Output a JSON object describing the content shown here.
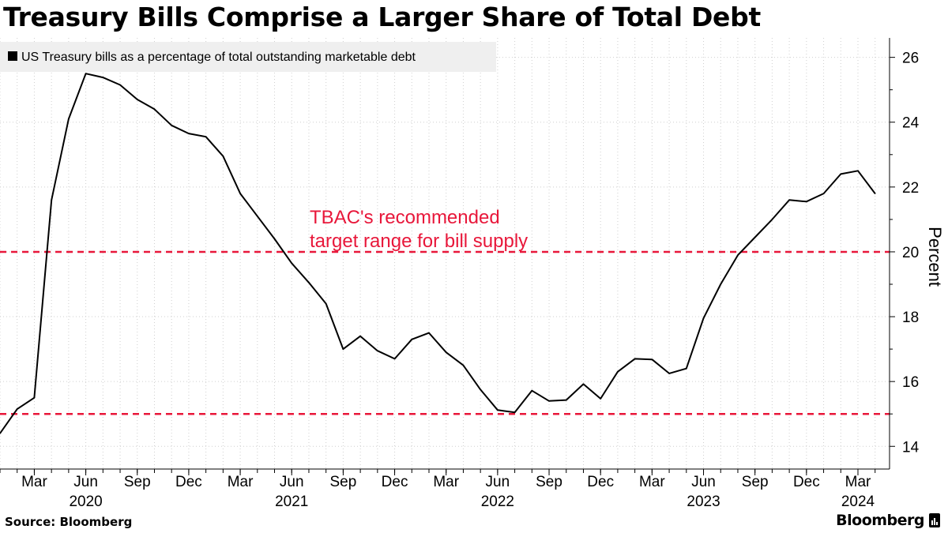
{
  "title": "Treasury Bills Comprise a Larger Share of Total Debt",
  "source": "Source: Bloomberg",
  "brand": "Bloomberg",
  "colors": {
    "line": "#000000",
    "threshold": "#e8173a",
    "grid": "#cfcfcf",
    "legend_bg": "#efefef"
  },
  "chart_data": {
    "type": "line",
    "title": "Treasury Bills Comprise a Larger Share of Total Debt",
    "xlabel": "",
    "ylabel": "Percent",
    "ylim": [
      13.3,
      26.6
    ],
    "yticks": [
      14,
      16,
      18,
      20,
      22,
      24,
      26
    ],
    "grid": true,
    "legend_position": "top-left",
    "x_start": "2020-01",
    "x_end": "2024-05",
    "month_ticks": [
      {
        "month": "2020-03",
        "label": "Mar"
      },
      {
        "month": "2020-06",
        "label": "Jun"
      },
      {
        "month": "2020-09",
        "label": "Sep"
      },
      {
        "month": "2020-12",
        "label": "Dec"
      },
      {
        "month": "2021-03",
        "label": "Mar"
      },
      {
        "month": "2021-06",
        "label": "Jun"
      },
      {
        "month": "2021-09",
        "label": "Sep"
      },
      {
        "month": "2021-12",
        "label": "Dec"
      },
      {
        "month": "2022-03",
        "label": "Mar"
      },
      {
        "month": "2022-06",
        "label": "Jun"
      },
      {
        "month": "2022-09",
        "label": "Sep"
      },
      {
        "month": "2022-12",
        "label": "Dec"
      },
      {
        "month": "2023-03",
        "label": "Mar"
      },
      {
        "month": "2023-06",
        "label": "Jun"
      },
      {
        "month": "2023-09",
        "label": "Sep"
      },
      {
        "month": "2023-12",
        "label": "Dec"
      },
      {
        "month": "2024-03",
        "label": "Mar"
      }
    ],
    "year_labels": [
      {
        "month": "2020-06",
        "label": "2020"
      },
      {
        "month": "2021-06",
        "label": "2021"
      },
      {
        "month": "2022-06",
        "label": "2022"
      },
      {
        "month": "2023-06",
        "label": "2023"
      },
      {
        "month": "2024-03",
        "label": "2024"
      }
    ],
    "series": [
      {
        "name": "US Treasury bills as a percentage of total outstanding marketable debt",
        "x": [
          "2020-01",
          "2020-02",
          "2020-03",
          "2020-04",
          "2020-05",
          "2020-06",
          "2020-07",
          "2020-08",
          "2020-09",
          "2020-10",
          "2020-11",
          "2020-12",
          "2021-01",
          "2021-02",
          "2021-03",
          "2021-04",
          "2021-05",
          "2021-06",
          "2021-07",
          "2021-08",
          "2021-09",
          "2021-10",
          "2021-11",
          "2021-12",
          "2022-01",
          "2022-02",
          "2022-03",
          "2022-04",
          "2022-05",
          "2022-06",
          "2022-07",
          "2022-08",
          "2022-09",
          "2022-10",
          "2022-11",
          "2022-12",
          "2023-01",
          "2023-02",
          "2023-03",
          "2023-04",
          "2023-05",
          "2023-06",
          "2023-07",
          "2023-08",
          "2023-09",
          "2023-10",
          "2023-11",
          "2023-12",
          "2024-01",
          "2024-02",
          "2024-03",
          "2024-04"
        ],
        "values": [
          14.4,
          15.15,
          15.5,
          21.6,
          24.1,
          25.5,
          25.38,
          25.15,
          24.7,
          24.4,
          23.9,
          23.65,
          23.55,
          22.95,
          21.8,
          21.1,
          20.4,
          19.65,
          19.05,
          18.4,
          17.0,
          17.4,
          16.95,
          16.7,
          17.3,
          17.5,
          16.9,
          16.5,
          15.75,
          15.12,
          15.05,
          15.72,
          15.4,
          15.43,
          15.92,
          15.47,
          16.3,
          16.7,
          16.68,
          16.25,
          16.4,
          17.95,
          19.0,
          19.9,
          20.45,
          21.0,
          21.6,
          21.55,
          21.8,
          22.4,
          22.5,
          21.8
        ]
      }
    ],
    "thresholds": [
      20,
      15
    ],
    "annotation": {
      "lines": [
        "TBAC's recommended",
        "target range for bill supply"
      ]
    }
  }
}
